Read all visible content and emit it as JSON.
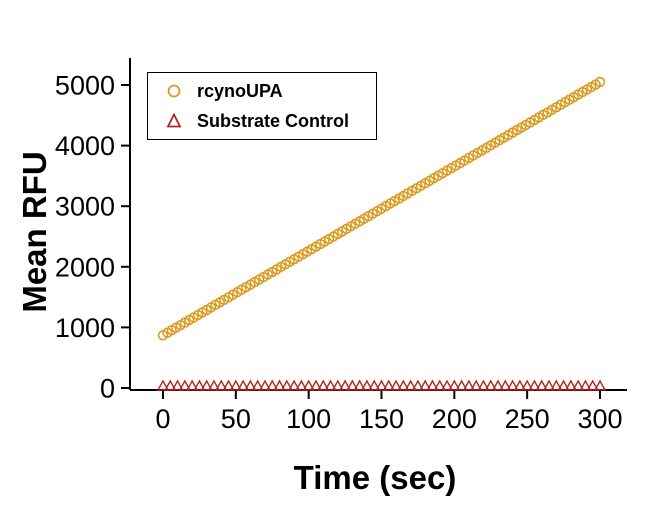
{
  "figure": {
    "background": "#ffffff"
  },
  "chart_data": {
    "type": "scatter",
    "title": "",
    "xlabel": "Time (sec)",
    "ylabel": "Mean RFU",
    "xlim": [
      0,
      300
    ],
    "ylim": [
      0,
      5000
    ],
    "x_ticks": [
      0,
      50,
      100,
      150,
      200,
      250,
      300
    ],
    "y_ticks": [
      0,
      1000,
      2000,
      3000,
      4000,
      5000
    ],
    "grid": false,
    "legend_position": "upper-left",
    "series": [
      {
        "name": "rcynoUPA",
        "marker": "circle",
        "color": "#DB9A1F",
        "x": [
          0,
          3,
          6,
          9,
          12,
          15,
          18,
          21,
          24,
          27,
          30,
          33,
          36,
          39,
          42,
          45,
          48,
          51,
          54,
          57,
          60,
          63,
          66,
          69,
          72,
          75,
          78,
          81,
          84,
          87,
          90,
          93,
          96,
          99,
          102,
          105,
          108,
          111,
          114,
          117,
          120,
          123,
          126,
          129,
          132,
          135,
          138,
          141,
          144,
          147,
          150,
          153,
          156,
          159,
          162,
          165,
          168,
          171,
          174,
          177,
          180,
          183,
          186,
          189,
          192,
          195,
          198,
          201,
          204,
          207,
          210,
          213,
          216,
          219,
          222,
          225,
          228,
          231,
          234,
          237,
          240,
          243,
          246,
          249,
          252,
          255,
          258,
          261,
          264,
          267,
          270,
          273,
          276,
          279,
          282,
          285,
          288,
          291,
          294,
          297,
          300
        ],
        "y": [
          870,
          912,
          954,
          995,
          1037,
          1079,
          1121,
          1163,
          1204,
          1246,
          1288,
          1330,
          1372,
          1413,
          1455,
          1497,
          1539,
          1581,
          1622,
          1664,
          1706,
          1748,
          1790,
          1831,
          1873,
          1915,
          1957,
          1999,
          2040,
          2082,
          2124,
          2166,
          2208,
          2249,
          2291,
          2333,
          2375,
          2417,
          2458,
          2500,
          2542,
          2584,
          2626,
          2667,
          2709,
          2751,
          2793,
          2835,
          2876,
          2918,
          2960,
          3002,
          3044,
          3085,
          3127,
          3169,
          3211,
          3253,
          3294,
          3336,
          3378,
          3420,
          3462,
          3503,
          3545,
          3587,
          3629,
          3671,
          3712,
          3754,
          3796,
          3838,
          3880,
          3921,
          3963,
          4005,
          4047,
          4089,
          4130,
          4172,
          4214,
          4256,
          4298,
          4339,
          4381,
          4423,
          4465,
          4507,
          4548,
          4590,
          4632,
          4674,
          4716,
          4757,
          4799,
          4841,
          4883,
          4925,
          4966,
          5008,
          5050
        ]
      },
      {
        "name": "Substrate Control",
        "marker": "triangle",
        "color": "#B4231F",
        "x": [
          0,
          5,
          10,
          15,
          20,
          25,
          30,
          35,
          40,
          45,
          50,
          55,
          60,
          65,
          70,
          75,
          80,
          85,
          90,
          95,
          100,
          105,
          110,
          115,
          120,
          125,
          130,
          135,
          140,
          145,
          150,
          155,
          160,
          165,
          170,
          175,
          180,
          185,
          190,
          195,
          200,
          205,
          210,
          215,
          220,
          225,
          230,
          235,
          240,
          245,
          250,
          255,
          260,
          265,
          270,
          275,
          280,
          285,
          290,
          295,
          300
        ],
        "y": [
          30,
          30,
          30,
          30,
          30,
          30,
          30,
          30,
          30,
          30,
          30,
          30,
          30,
          30,
          30,
          30,
          30,
          30,
          30,
          30,
          30,
          30,
          30,
          30,
          30,
          30,
          30,
          30,
          30,
          30,
          30,
          30,
          30,
          30,
          30,
          30,
          30,
          30,
          30,
          30,
          30,
          30,
          30,
          30,
          30,
          30,
          30,
          30,
          30,
          30,
          30,
          30,
          30,
          30,
          30,
          30,
          30,
          30,
          30,
          30,
          30
        ]
      }
    ]
  }
}
